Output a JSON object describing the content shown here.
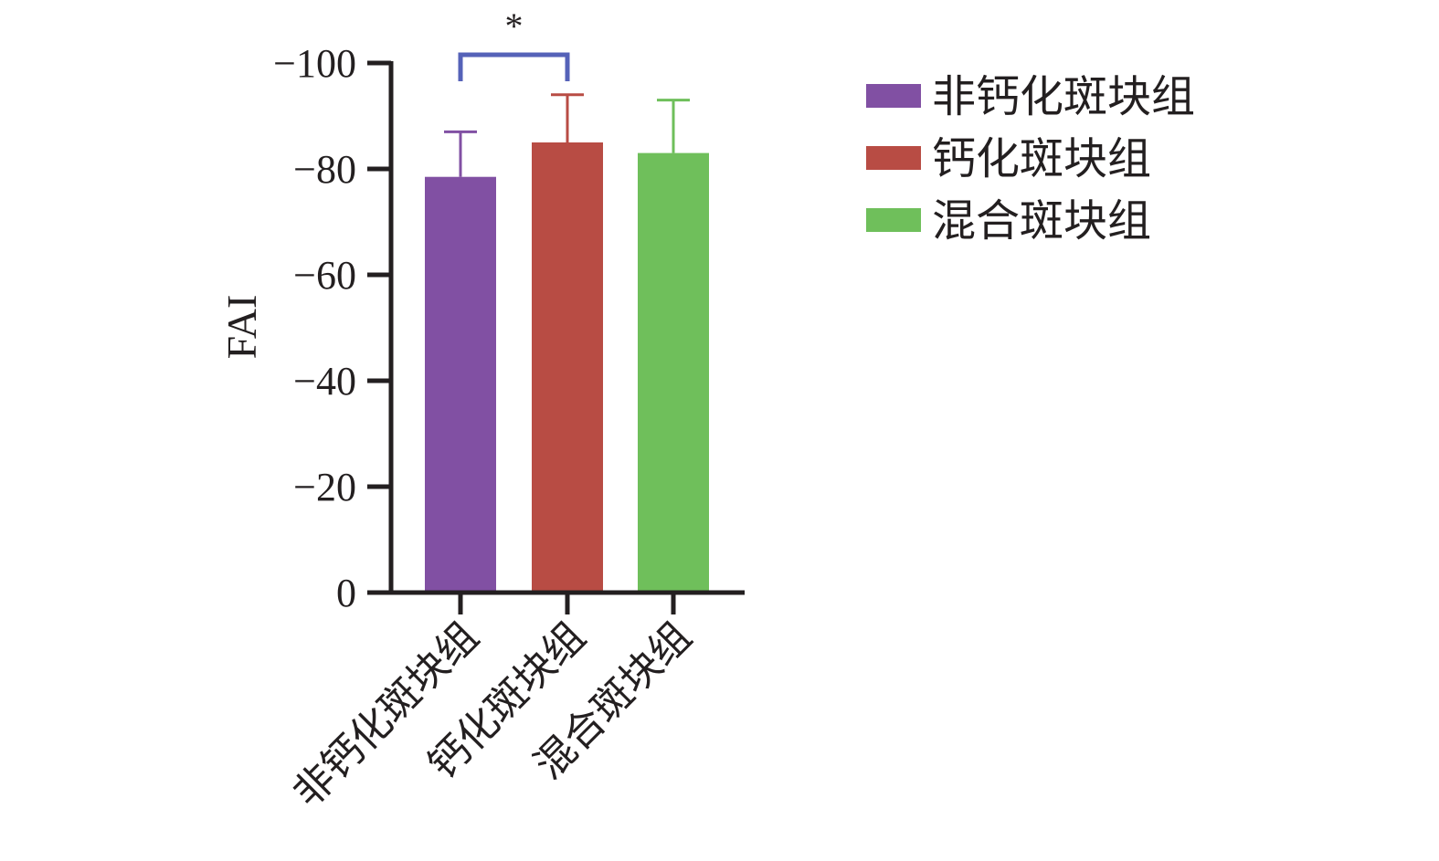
{
  "chart_data": {
    "type": "bar",
    "title": "",
    "xlabel": "",
    "ylabel": "FAI",
    "ylim": [
      0,
      -100
    ],
    "yticks": [
      0,
      -20,
      -40,
      -60,
      -80,
      -100
    ],
    "ytick_labels": [
      "0",
      "−20",
      "−40",
      "−60",
      "−80",
      "−100"
    ],
    "categories": [
      "非钙化斑块组",
      "钙化斑块组",
      "混合斑块组"
    ],
    "values": [
      -78.5,
      -85,
      -83
    ],
    "error_upper": [
      -87,
      -94,
      -93
    ],
    "colors": [
      "#8150a3",
      "#b84c44",
      "#6fbf5b"
    ],
    "legend": {
      "position": "right",
      "entries": [
        "非钙化斑块组",
        "钙化斑块组",
        "混合斑块组"
      ]
    },
    "significance": [
      {
        "between": [
          0,
          1
        ],
        "label": "*",
        "color": "#5562b8"
      }
    ],
    "grid": false
  }
}
